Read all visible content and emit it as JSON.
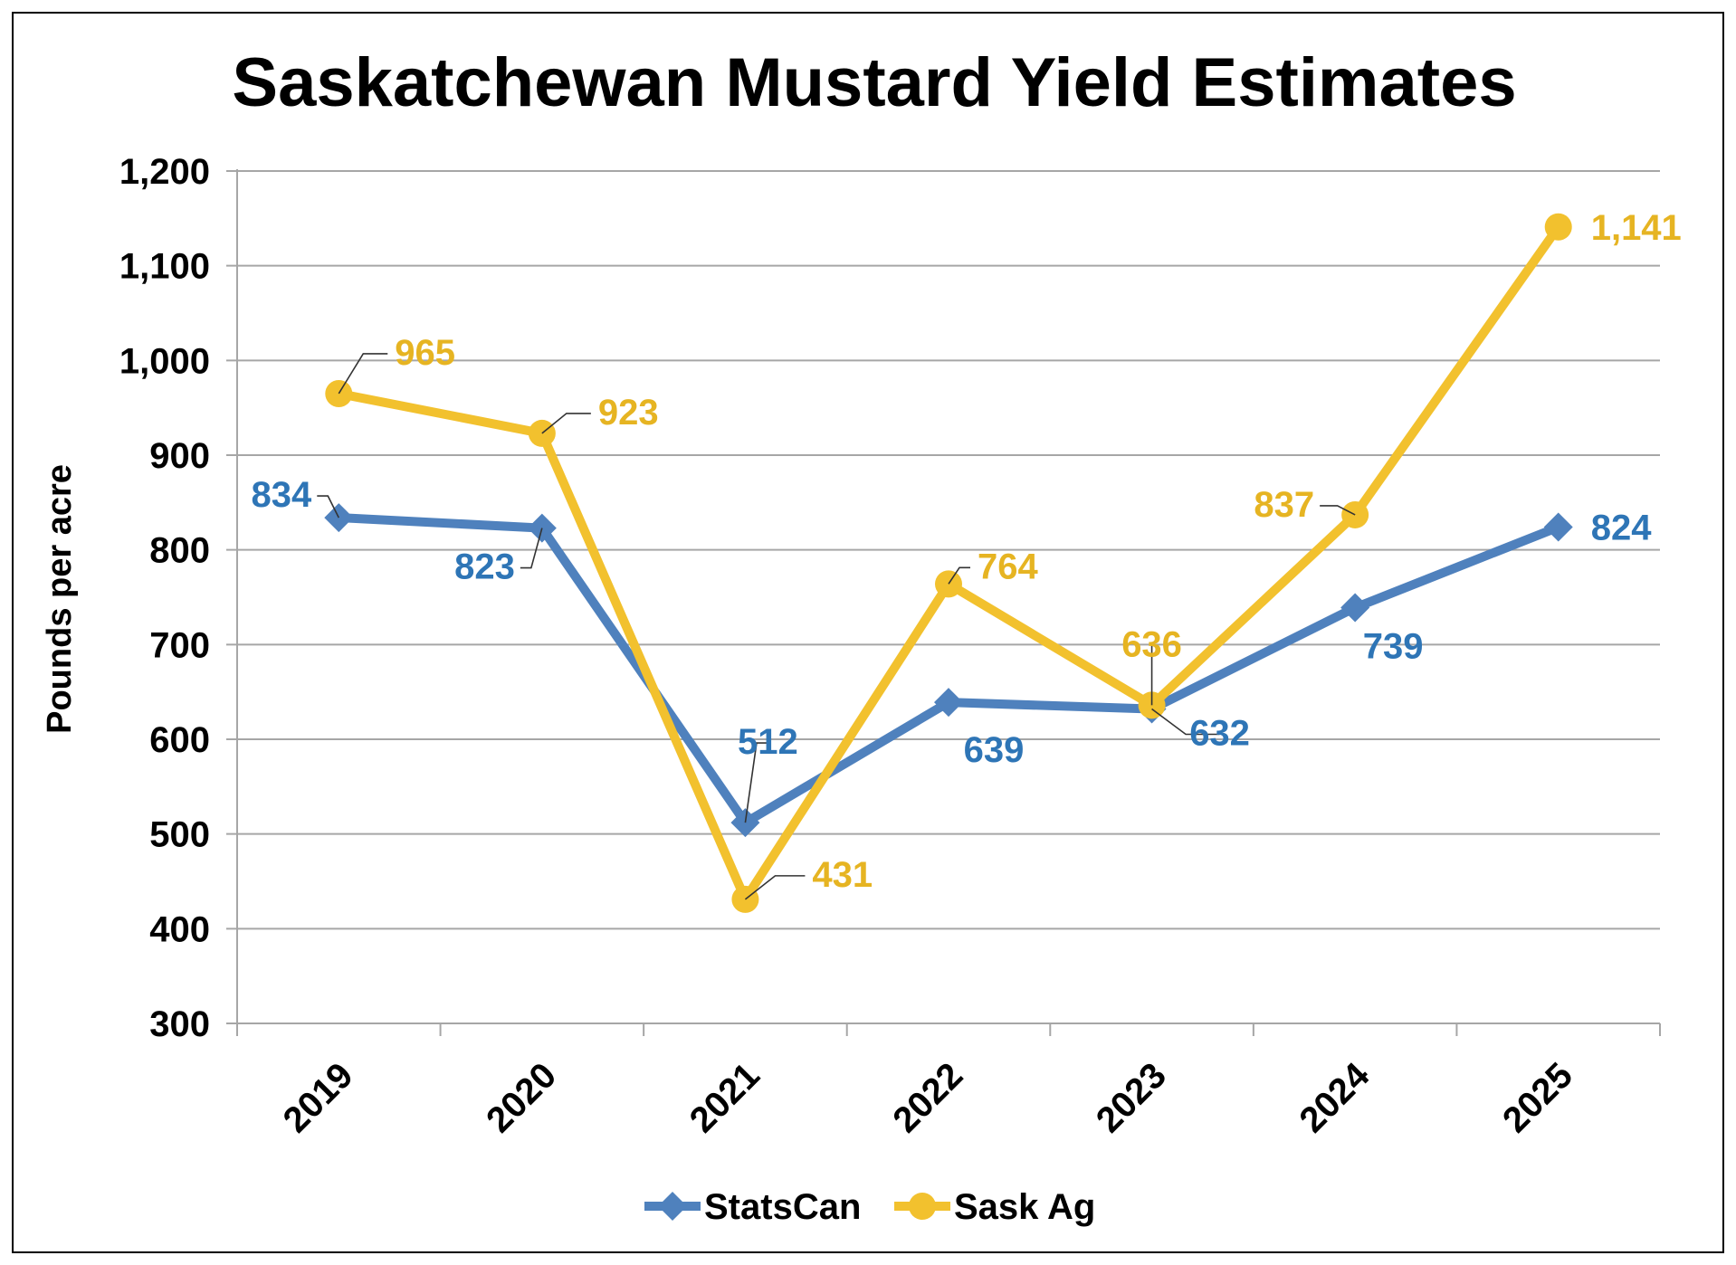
{
  "chart_data": {
    "type": "line",
    "title": "Saskatchewan Mustard Yield Estimates",
    "xlabel": "",
    "ylabel": "Pounds per acre",
    "categories": [
      "2019",
      "2020",
      "2021",
      "2022",
      "2023",
      "2024",
      "2025"
    ],
    "ylim": [
      300,
      1200
    ],
    "yticks": [
      300,
      400,
      500,
      600,
      700,
      800,
      900,
      1000,
      1100,
      1200
    ],
    "ytick_labels": [
      "300",
      "400",
      "500",
      "600",
      "700",
      "800",
      "900",
      "1,000",
      "1,100",
      "1,200"
    ],
    "grid": true,
    "legend_position": "bottom",
    "series": [
      {
        "name": "StatsCan",
        "color": "#4F81BD",
        "label_color": "#2E75B6",
        "marker": "diamond",
        "values": [
          834,
          823,
          512,
          639,
          632,
          739,
          824
        ],
        "labels": [
          "834",
          "823",
          "512",
          "639",
          "632",
          "739",
          "824"
        ]
      },
      {
        "name": "Sask Ag",
        "color": "#F2C12E",
        "label_color": "#E6B422",
        "marker": "circle",
        "values": [
          965,
          923,
          431,
          764,
          636,
          837,
          1141
        ],
        "labels": [
          "965",
          "923",
          "431",
          "764",
          "636",
          "837",
          "1,141"
        ]
      }
    ]
  }
}
